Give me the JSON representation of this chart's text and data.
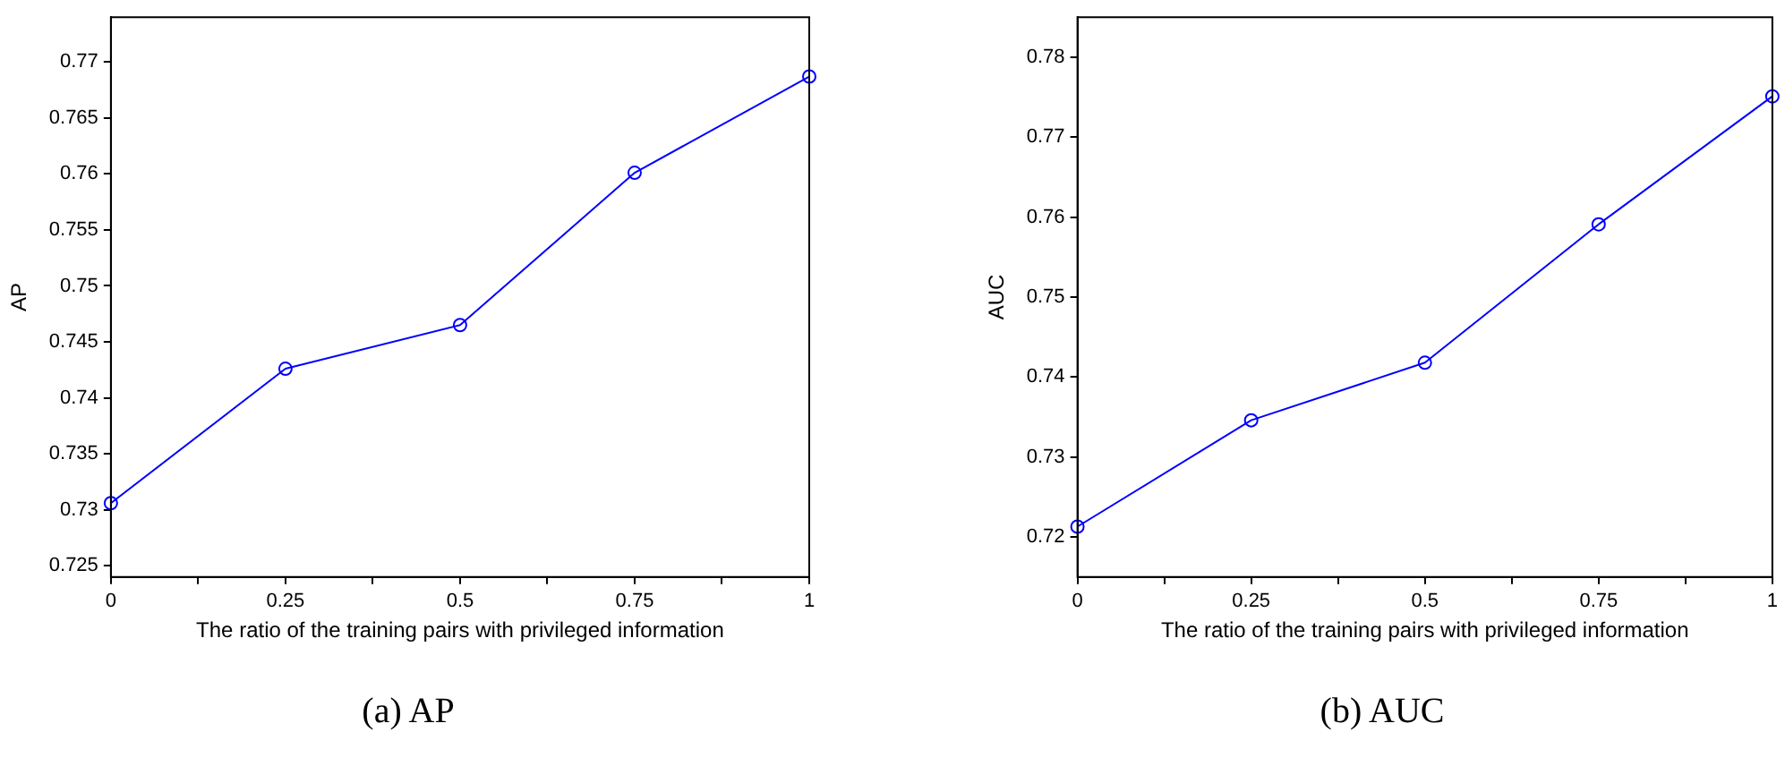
{
  "chart_data": [
    {
      "type": "line",
      "title": "(a) AP",
      "xlabel": "The ratio of the training pairs with privileged information",
      "ylabel": "AP",
      "x": [
        0,
        0.25,
        0.5,
        0.75,
        1
      ],
      "series": [
        {
          "color": "#0000ff",
          "values": [
            0.7306,
            0.7426,
            0.7465,
            0.7601,
            0.7687
          ]
        }
      ],
      "xlim": [
        0,
        1
      ],
      "xticks": [
        0,
        {
          "value": 0.125,
          "label": null
        },
        0.25,
        {
          "value": 0.375,
          "label": null
        },
        0.5,
        {
          "value": 0.625,
          "label": null
        },
        0.75,
        {
          "value": 0.875,
          "label": null
        },
        1
      ],
      "ylim": [
        0.724,
        0.774
      ],
      "yticks": [
        0.725,
        0.73,
        0.735,
        0.74,
        0.745,
        0.75,
        0.755,
        0.76,
        0.765,
        0.77
      ],
      "grid": false,
      "legend": false,
      "marker": "circle",
      "line_style": "solid"
    },
    {
      "type": "line",
      "title": "(b) AUC",
      "xlabel": "The ratio of the training pairs with privileged information",
      "ylabel": "AUC",
      "x": [
        0,
        0.25,
        0.5,
        0.75,
        1
      ],
      "series": [
        {
          "color": "#0000ff",
          "values": [
            0.7213,
            0.7346,
            0.7418,
            0.7591,
            0.7751
          ]
        }
      ],
      "xlim": [
        0,
        1
      ],
      "xticks": [
        0,
        {
          "value": 0.125,
          "label": null
        },
        0.25,
        {
          "value": 0.375,
          "label": null
        },
        0.5,
        {
          "value": 0.625,
          "label": null
        },
        0.75,
        {
          "value": 0.875,
          "label": null
        },
        1
      ],
      "ylim": [
        0.715,
        0.785
      ],
      "yticks": [
        0.72,
        0.73,
        0.74,
        0.75,
        0.76,
        0.77,
        0.78
      ],
      "grid": false,
      "legend": false,
      "marker": "circle",
      "line_style": "solid"
    }
  ]
}
